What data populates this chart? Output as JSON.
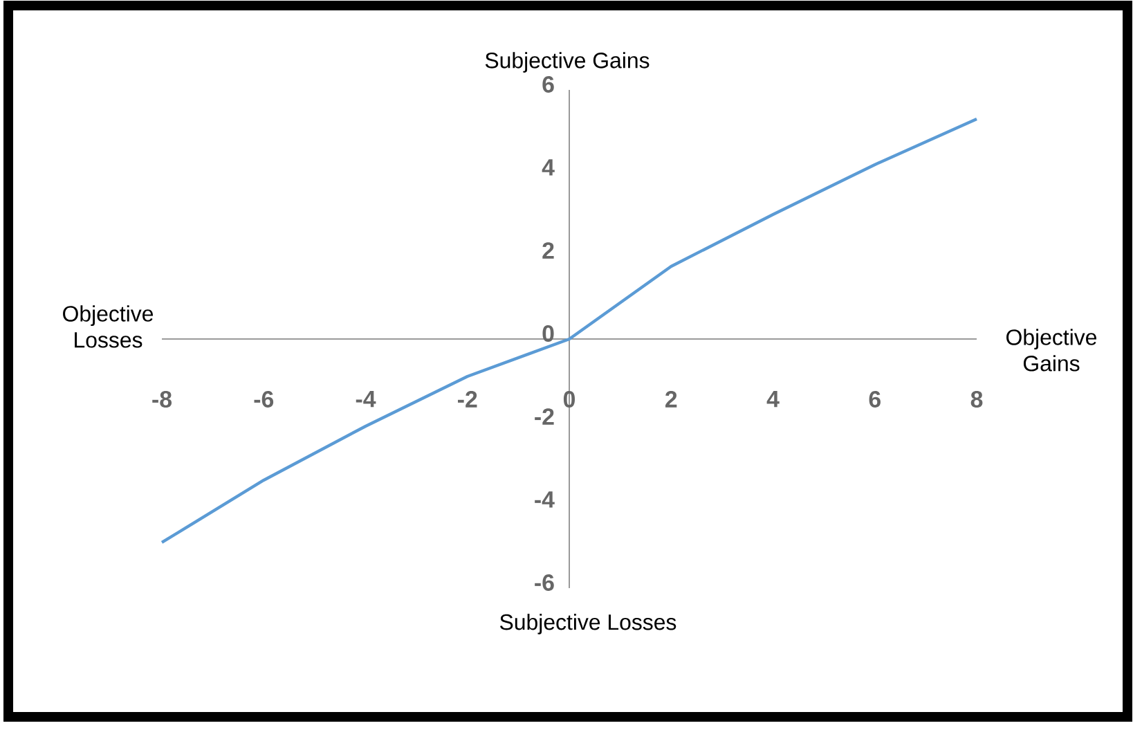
{
  "chart_data": {
    "type": "line",
    "xlabel": "Objective Gains",
    "ylabel": "Subjective Gains",
    "annotations": [
      "Objective Losses",
      "Subjective Losses"
    ],
    "x": [
      -8,
      -6,
      -4,
      -2,
      0,
      2,
      4,
      6,
      8
    ],
    "series": [
      {
        "color": "#5b9bd5",
        "values": [
          -4.9,
          -3.4,
          -2.1,
          -0.9,
          0,
          1.75,
          3.0,
          4.2,
          5.3
        ]
      }
    ],
    "xlim": [
      -8,
      8
    ],
    "ylim": [
      -6,
      6
    ],
    "xticks": [
      -8,
      -6,
      -4,
      -2,
      0,
      2,
      4,
      6,
      8
    ],
    "yticks": [
      -6,
      -4,
      -2,
      0,
      2,
      4,
      6
    ],
    "grid": false,
    "marker": "none",
    "line_style": "solid"
  }
}
